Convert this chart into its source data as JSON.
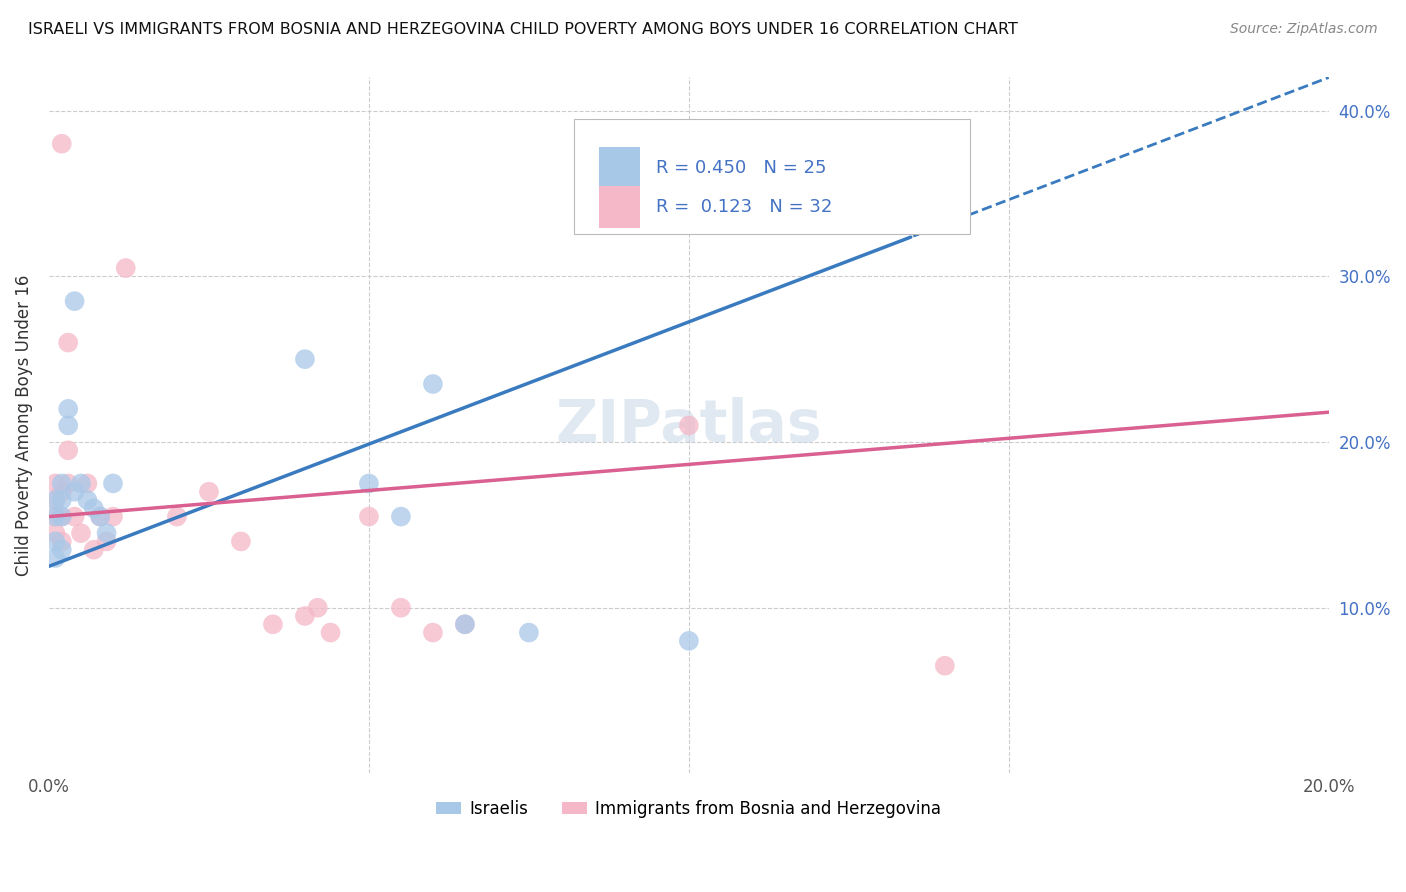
{
  "title": "ISRAELI VS IMMIGRANTS FROM BOSNIA AND HERZEGOVINA CHILD POVERTY AMONG BOYS UNDER 16 CORRELATION CHART",
  "source": "Source: ZipAtlas.com",
  "ylabel": "Child Poverty Among Boys Under 16",
  "xlim": [
    0.0,
    0.2
  ],
  "ylim": [
    0.0,
    0.42
  ],
  "blue_R": 0.45,
  "blue_N": 25,
  "pink_R": 0.123,
  "pink_N": 32,
  "blue_color": "#a8c8e8",
  "pink_color": "#f4b8c8",
  "blue_line_color": "#3a7bbf",
  "pink_line_color": "#d96090",
  "watermark": "ZIPatlas",
  "blue_points": [
    [
      0.001,
      0.155
    ],
    [
      0.001,
      0.165
    ],
    [
      0.001,
      0.14
    ],
    [
      0.001,
      0.13
    ],
    [
      0.002,
      0.175
    ],
    [
      0.002,
      0.165
    ],
    [
      0.002,
      0.155
    ],
    [
      0.002,
      0.135
    ],
    [
      0.003,
      0.22
    ],
    [
      0.003,
      0.21
    ],
    [
      0.004,
      0.285
    ],
    [
      0.004,
      0.17
    ],
    [
      0.005,
      0.175
    ],
    [
      0.006,
      0.165
    ],
    [
      0.007,
      0.16
    ],
    [
      0.008,
      0.155
    ],
    [
      0.009,
      0.145
    ],
    [
      0.01,
      0.175
    ],
    [
      0.04,
      0.25
    ],
    [
      0.05,
      0.175
    ],
    [
      0.055,
      0.155
    ],
    [
      0.06,
      0.235
    ],
    [
      0.065,
      0.09
    ],
    [
      0.075,
      0.085
    ],
    [
      0.1,
      0.08
    ]
  ],
  "pink_points": [
    [
      0.001,
      0.175
    ],
    [
      0.001,
      0.165
    ],
    [
      0.001,
      0.155
    ],
    [
      0.001,
      0.145
    ],
    [
      0.002,
      0.38
    ],
    [
      0.002,
      0.17
    ],
    [
      0.002,
      0.155
    ],
    [
      0.002,
      0.14
    ],
    [
      0.003,
      0.26
    ],
    [
      0.003,
      0.195
    ],
    [
      0.003,
      0.175
    ],
    [
      0.004,
      0.155
    ],
    [
      0.005,
      0.145
    ],
    [
      0.006,
      0.175
    ],
    [
      0.007,
      0.135
    ],
    [
      0.008,
      0.155
    ],
    [
      0.009,
      0.14
    ],
    [
      0.01,
      0.155
    ],
    [
      0.012,
      0.305
    ],
    [
      0.02,
      0.155
    ],
    [
      0.025,
      0.17
    ],
    [
      0.03,
      0.14
    ],
    [
      0.035,
      0.09
    ],
    [
      0.04,
      0.095
    ],
    [
      0.042,
      0.1
    ],
    [
      0.044,
      0.085
    ],
    [
      0.05,
      0.155
    ],
    [
      0.055,
      0.1
    ],
    [
      0.06,
      0.085
    ],
    [
      0.065,
      0.09
    ],
    [
      0.1,
      0.21
    ],
    [
      0.14,
      0.065
    ]
  ],
  "background_color": "#ffffff",
  "grid_color": "#cccccc"
}
